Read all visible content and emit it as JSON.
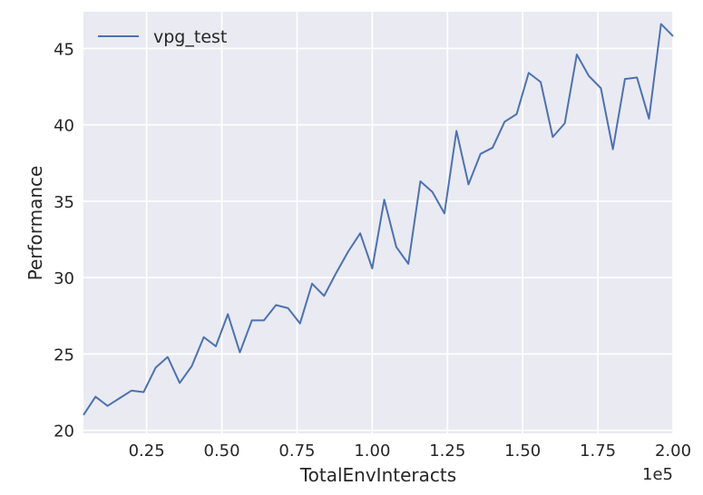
{
  "chart_data": {
    "type": "line",
    "title": "",
    "xlabel": "TotalEnvInteracts",
    "ylabel": "Performance",
    "x_scale_label": "1e5",
    "xlim": [
      0.04,
      2.0
    ],
    "ylim": [
      19.8,
      47.4
    ],
    "x_ticks": [
      0.25,
      0.5,
      0.75,
      1.0,
      1.25,
      1.5,
      1.75,
      2.0
    ],
    "x_tick_labels": [
      "0.25",
      "0.50",
      "0.75",
      "1.00",
      "1.25",
      "1.50",
      "1.75",
      "2.00"
    ],
    "y_ticks": [
      20,
      25,
      30,
      35,
      40,
      45
    ],
    "y_tick_labels": [
      "20",
      "25",
      "30",
      "35",
      "40",
      "45"
    ],
    "grid": true,
    "legend": "top-left",
    "series": [
      {
        "name": "vpg_test",
        "color": "#4c72b0",
        "x": [
          0.04,
          0.08,
          0.12,
          0.16,
          0.2,
          0.24,
          0.28,
          0.32,
          0.36,
          0.4,
          0.44,
          0.48,
          0.52,
          0.56,
          0.6,
          0.64,
          0.68,
          0.72,
          0.76,
          0.8,
          0.84,
          0.88,
          0.92,
          0.96,
          1.0,
          1.04,
          1.08,
          1.12,
          1.16,
          1.2,
          1.24,
          1.28,
          1.32,
          1.36,
          1.4,
          1.44,
          1.48,
          1.52,
          1.56,
          1.6,
          1.64,
          1.68,
          1.72,
          1.76,
          1.8,
          1.84,
          1.88,
          1.92,
          1.96,
          2.0
        ],
        "y": [
          21.0,
          22.2,
          21.6,
          22.1,
          22.6,
          22.5,
          24.1,
          24.8,
          23.1,
          24.2,
          26.1,
          25.5,
          27.6,
          25.1,
          27.2,
          27.2,
          28.2,
          28.0,
          27.0,
          29.6,
          28.8,
          30.3,
          31.7,
          32.9,
          30.6,
          35.1,
          32.0,
          30.9,
          36.3,
          35.6,
          34.2,
          39.6,
          36.1,
          38.1,
          38.5,
          40.2,
          40.7,
          43.4,
          42.8,
          39.2,
          40.1,
          44.6,
          43.2,
          42.4,
          38.4,
          43.0,
          43.1,
          40.4,
          46.6,
          45.8
        ]
      }
    ]
  },
  "colors": {
    "plot_background": "#eaeaf2",
    "grid": "#ffffff",
    "line": "#4c72b0",
    "text": "#262626"
  }
}
